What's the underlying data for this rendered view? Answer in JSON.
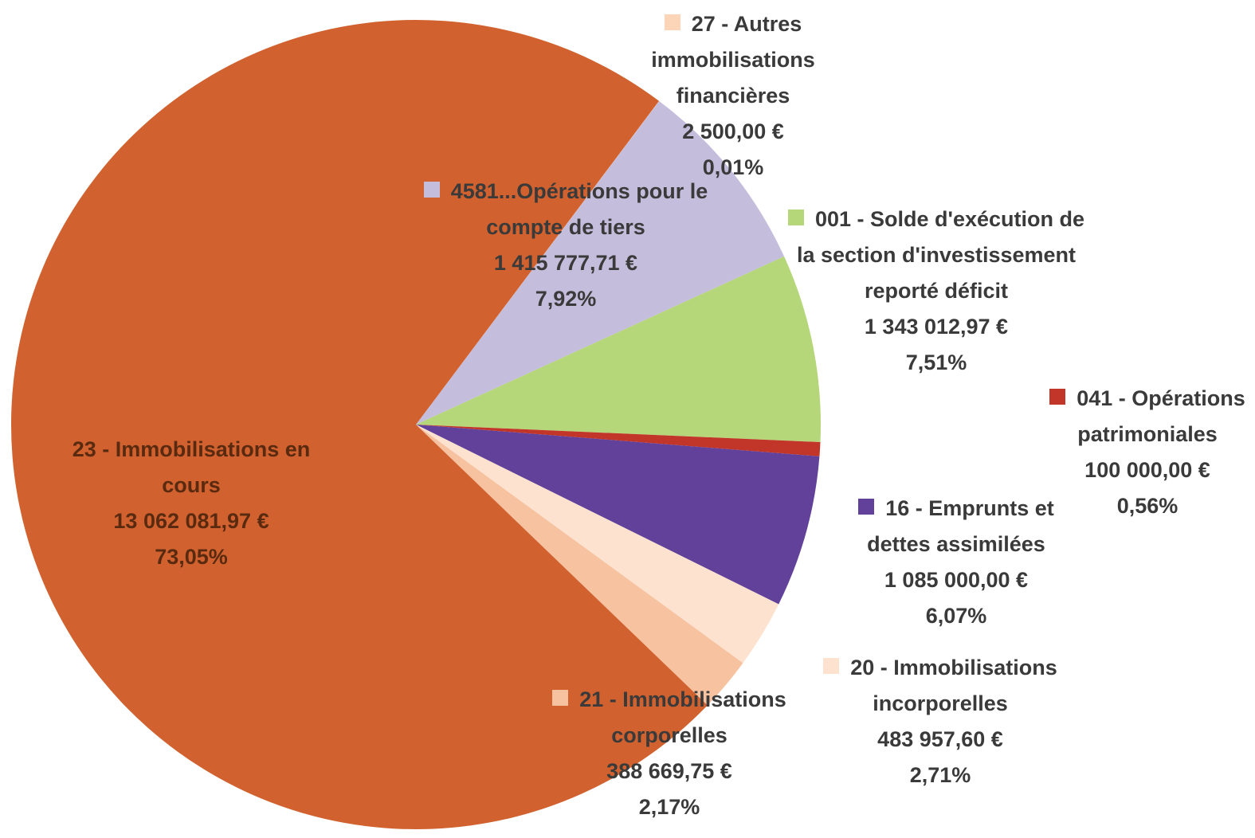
{
  "chart_data": {
    "type": "pie",
    "categories": [
      "27 - Autres immobilisations financières",
      "4581...Opérations pour le compte de tiers",
      "001 - Solde d'exécution de la section d'investissement reporté déficit",
      "041 - Opérations patrimoniales",
      "16 - Emprunts et dettes assimilées",
      "20 - Immobilisations incorporelles",
      "21 - Immobilisations corporelles",
      "23 - Immobilisations en cours"
    ],
    "values": [
      0.01,
      7.92,
      7.51,
      0.56,
      6.07,
      2.71,
      2.17,
      73.05
    ],
    "value_labels": [
      "0,01%",
      "7,92%",
      "7,51%",
      "0,56%",
      "6,07%",
      "2,71%",
      "2,17%",
      "73,05%"
    ],
    "amount_labels": [
      "2 500,00 €",
      "1 415 777,71 €",
      "1 343 012,97 €",
      "100 000,00 €",
      "1 085 000,00 €",
      "483 957,60 €",
      "388 669,75 €",
      "13 062 081,97 €"
    ],
    "colors": [
      "#fcd5b8",
      "#c4bddc",
      "#b6d67a",
      "#c2362a",
      "#61419a",
      "#fde2cf",
      "#f7c2a0",
      "#d1622f"
    ]
  }
}
